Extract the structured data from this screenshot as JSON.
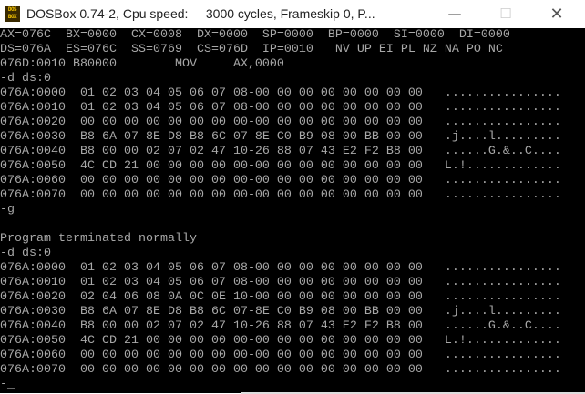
{
  "window": {
    "title": "DOSBox 0.74-2, Cpu speed:     3000 cycles, Frameskip 0, P...",
    "icon_text": "DOS BOX",
    "minimize_icon": "minimize-icon",
    "maximize_icon": "maximize-icon",
    "close_icon": "close-icon"
  },
  "terminal": {
    "lines": [
      "AX=076C  BX=0000  CX=0008  DX=0000  SP=0000  BP=0000  SI=0000  DI=0000",
      "DS=076A  ES=076C  SS=0769  CS=076D  IP=0010   NV UP EI PL NZ NA PO NC",
      "076D:0010 B80000        MOV     AX,0000",
      "-d ds:0",
      "076A:0000  01 02 03 04 05 06 07 08-00 00 00 00 00 00 00 00   ................",
      "076A:0010  01 02 03 04 05 06 07 08-00 00 00 00 00 00 00 00   ................",
      "076A:0020  00 00 00 00 00 00 00 00-00 00 00 00 00 00 00 00   ................",
      "076A:0030  B8 6A 07 8E D8 B8 6C 07-8E C0 B9 08 00 BB 00 00   .j....l.........",
      "076A:0040  B8 00 00 02 07 02 47 10-26 88 07 43 E2 F2 B8 00   ......G.&..C....",
      "076A:0050  4C CD 21 00 00 00 00 00-00 00 00 00 00 00 00 00   L.!.............",
      "076A:0060  00 00 00 00 00 00 00 00-00 00 00 00 00 00 00 00   ................",
      "076A:0070  00 00 00 00 00 00 00 00-00 00 00 00 00 00 00 00   ................",
      "-g",
      "",
      "Program terminated normally",
      "-d ds:0",
      "076A:0000  01 02 03 04 05 06 07 08-00 00 00 00 00 00 00 00   ................",
      "076A:0010  01 02 03 04 05 06 07 08-00 00 00 00 00 00 00 00   ................",
      "076A:0020  02 04 06 08 0A 0C 0E 10-00 00 00 00 00 00 00 00   ................",
      "076A:0030  B8 6A 07 8E D8 B8 6C 07-8E C0 B9 08 00 BB 00 00   .j....l.........",
      "076A:0040  B8 00 00 02 07 02 47 10-26 88 07 43 E2 F2 B8 00   ......G.&..C....",
      "076A:0050  4C CD 21 00 00 00 00 00-00 00 00 00 00 00 00 00   L.!.............",
      "076A:0060  00 00 00 00 00 00 00 00-00 00 00 00 00 00 00 00   ................",
      "076A:0070  00 00 00 00 00 00 00 00-00 00 00 00 00 00 00 00   ................",
      "-_"
    ]
  }
}
